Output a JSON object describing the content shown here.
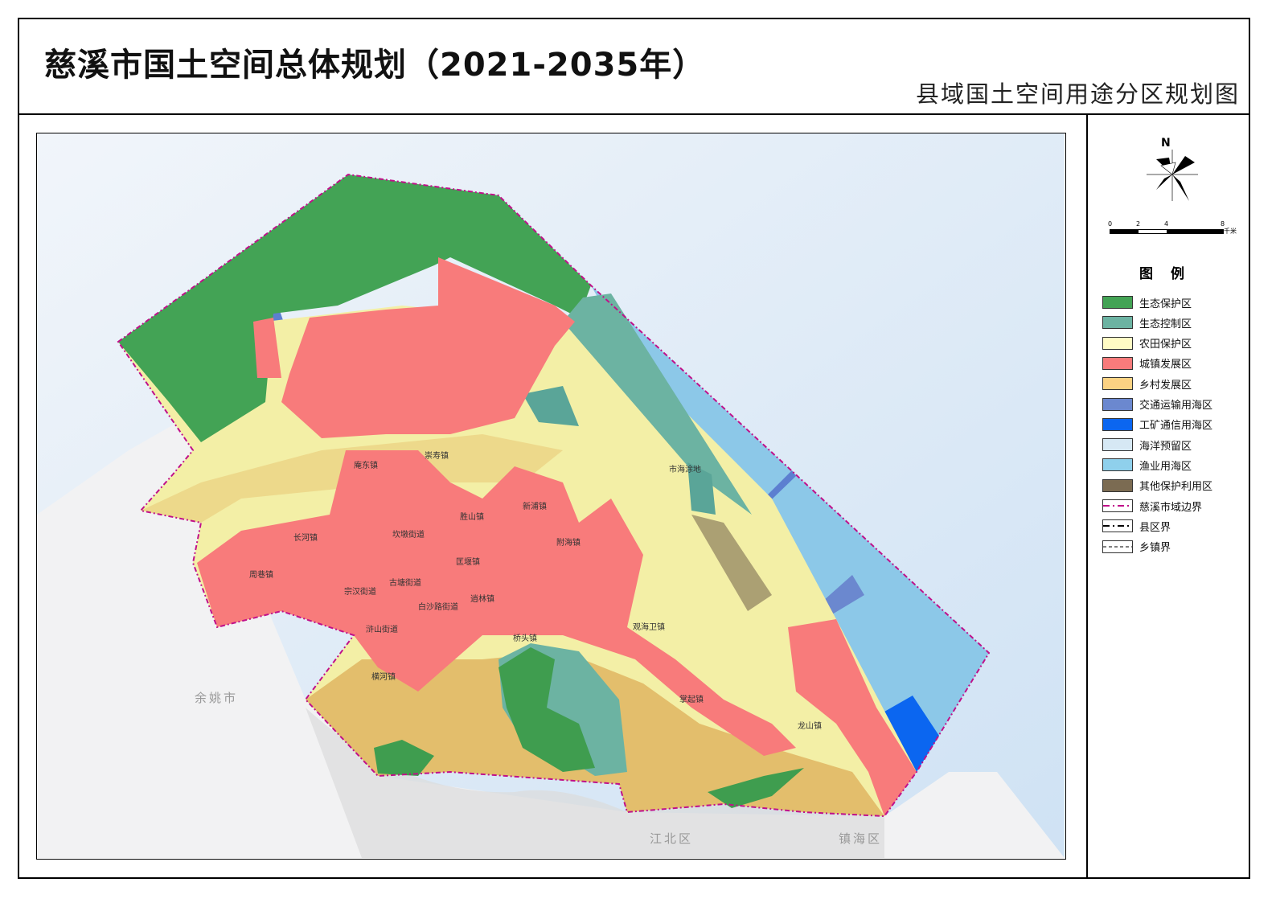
{
  "title": "慈溪市国土空间总体规划（2021-2035年）",
  "subtitle": "县域国土空间用途分区规划图",
  "compass": {
    "label": "N",
    "icon": "north-arrow-icon"
  },
  "scale_bar": {
    "ticks": [
      "0",
      "2",
      "4",
      "8"
    ],
    "unit": "千米"
  },
  "legend": {
    "title": "图 例",
    "items": [
      {
        "label": "生态保护区",
        "color": "#43a355",
        "type": "fill"
      },
      {
        "label": "生态控制区",
        "color": "#6cb3a2",
        "type": "fill"
      },
      {
        "label": "农田保护区",
        "color": "#fffbc4",
        "type": "fill"
      },
      {
        "label": "城镇发展区",
        "color": "#f87b7b",
        "type": "fill"
      },
      {
        "label": "乡村发展区",
        "color": "#fcd283",
        "type": "fill"
      },
      {
        "label": "交通运输用海区",
        "color": "#6b88cf",
        "type": "fill"
      },
      {
        "label": "工矿通信用海区",
        "color": "#0b66f0",
        "type": "fill"
      },
      {
        "label": "海洋预留区",
        "color": "#d6e8f4",
        "type": "fill"
      },
      {
        "label": "渔业用海区",
        "color": "#8fd0ec",
        "type": "fill"
      },
      {
        "label": "其他保护利用区",
        "color": "#7b6b52",
        "type": "fill"
      },
      {
        "label": "慈溪市域边界",
        "color": "#c0108a",
        "type": "dashdot"
      },
      {
        "label": "县区界",
        "color": "#000000",
        "type": "dashdot"
      },
      {
        "label": "乡镇界",
        "color": "#000000",
        "type": "dash"
      }
    ]
  },
  "map": {
    "neighbors": [
      "余姚市",
      "江北区",
      "镇海区"
    ],
    "towns": [
      "庵东镇",
      "崇寿镇",
      "长河镇",
      "周巷镇",
      "宗汉街道",
      "坎墩街道",
      "古塘街道",
      "白沙路街道",
      "浒山街道",
      "胜山镇",
      "新浦镇",
      "附海镇",
      "逍林镇",
      "桥头镇",
      "匡堰镇",
      "横河镇",
      "观海卫镇",
      "掌起镇",
      "龙山镇",
      "市海涂地"
    ]
  }
}
